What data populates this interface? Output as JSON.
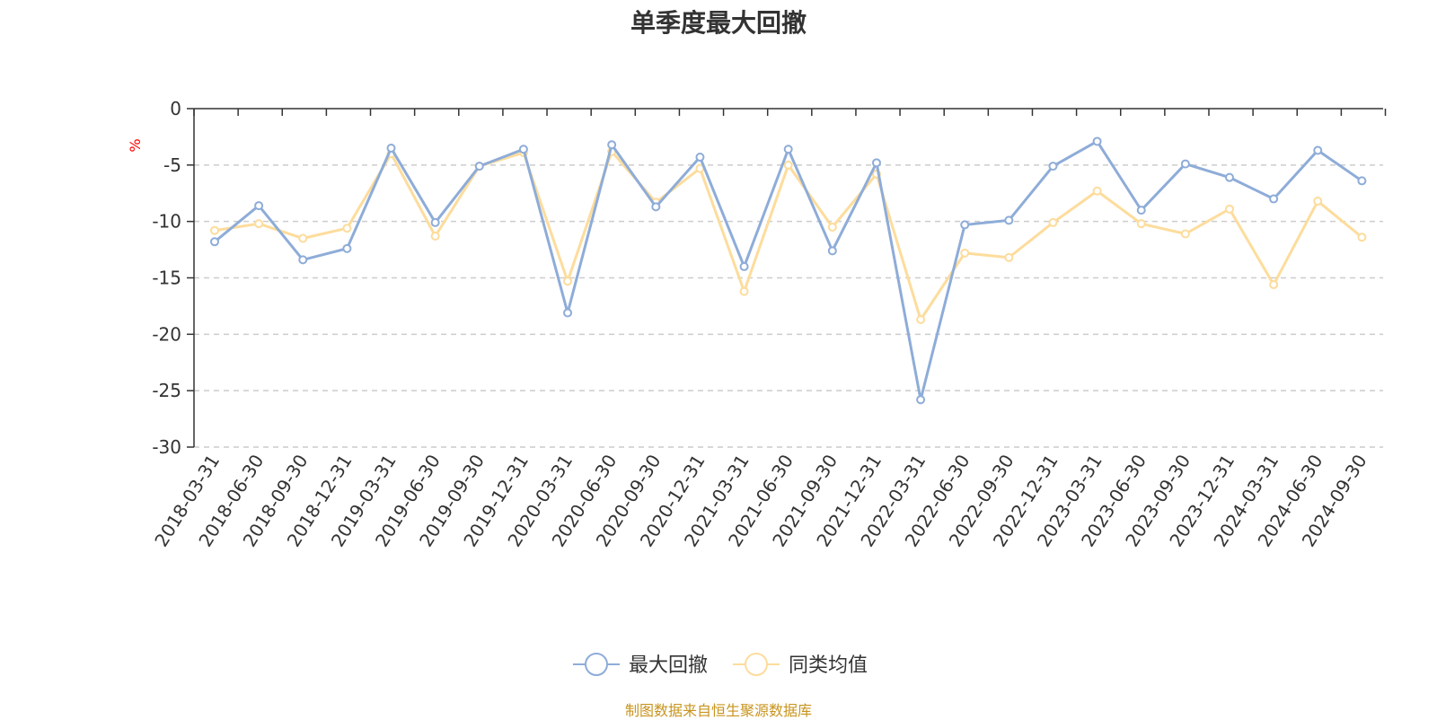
{
  "chart_data": {
    "type": "line",
    "title": "单季度最大回撤",
    "ylabel": "%",
    "xlabel": "",
    "ylim": [
      -30,
      0
    ],
    "yticks": [
      0,
      -5,
      -10,
      -15,
      -20,
      -25,
      -30
    ],
    "grid": true,
    "legend_position": "bottom-center",
    "categories": [
      "2018-03-31",
      "2018-06-30",
      "2018-09-30",
      "2018-12-31",
      "2019-03-31",
      "2019-06-30",
      "2019-09-30",
      "2019-12-31",
      "2020-03-31",
      "2020-06-30",
      "2020-09-30",
      "2020-12-31",
      "2021-03-31",
      "2021-06-30",
      "2021-09-30",
      "2021-12-31",
      "2022-03-31",
      "2022-06-30",
      "2022-09-30",
      "2022-12-31",
      "2023-03-31",
      "2023-06-30",
      "2023-09-30",
      "2023-12-31",
      "2024-03-31",
      "2024-06-30",
      "2024-09-30"
    ],
    "series": [
      {
        "name": "最大回撤",
        "color": "#8eacd8",
        "values": [
          -11.8,
          -8.6,
          -13.4,
          -12.4,
          -3.5,
          -10.1,
          -5.1,
          -3.6,
          -18.1,
          -3.2,
          -8.7,
          -4.3,
          -14.0,
          -3.6,
          -12.6,
          -4.8,
          -25.8,
          -10.3,
          -9.9,
          -5.1,
          -2.9,
          -9.0,
          -4.9,
          -6.1,
          -8.0,
          -3.7,
          -6.4
        ]
      },
      {
        "name": "同类均值",
        "color": "#fddc9c",
        "values": [
          -10.8,
          -10.2,
          -11.5,
          -10.6,
          -4.0,
          -11.3,
          -5.1,
          -3.9,
          -15.3,
          -3.8,
          -8.3,
          -5.3,
          -16.2,
          -5.0,
          -10.5,
          -5.8,
          -18.7,
          -12.8,
          -13.2,
          -10.1,
          -7.3,
          -10.2,
          -11.1,
          -8.9,
          -15.6,
          -8.2,
          -11.4
        ]
      }
    ]
  },
  "footer": {
    "source": "制图数据来自恒生聚源数据库"
  },
  "colors": {
    "axis": "#333333",
    "grid": "#cccccc",
    "unit_label": "#ff0000",
    "source": "#c8941e"
  }
}
